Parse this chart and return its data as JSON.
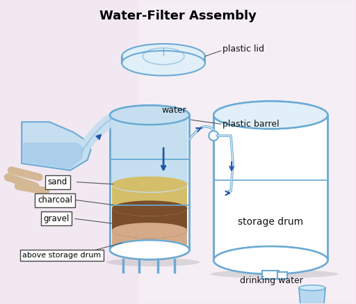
{
  "title": "Water-Filter Assembly",
  "background_color": "#f2e8f2",
  "colors": {
    "barrel_outline": "#6aaad4",
    "barrel_fill": "#ffffff",
    "water_fill": "#c5dff0",
    "sand_fill": "#d4be6a",
    "charcoal_fill": "#7a4e2a",
    "gravel_fill": "#d4aa88",
    "lid_fill": "#e0eff8",
    "arrow_color": "#2255aa",
    "title_color": "#000000",
    "text_color": "#111111",
    "cup_fill": "#d0eaf8",
    "shadow_color": "#c0c0c0",
    "line_color": "#555555"
  },
  "labels": {
    "plastic_lid": "plastic lid",
    "water": "water",
    "plastic_barrel": "plastic barrel",
    "sand": "sand",
    "charcoal": "charcoal",
    "gravel": "gravel",
    "above_storage_drum": "above storage drum",
    "storage_drum": "storage drum",
    "drinking_water": "drinking water"
  }
}
